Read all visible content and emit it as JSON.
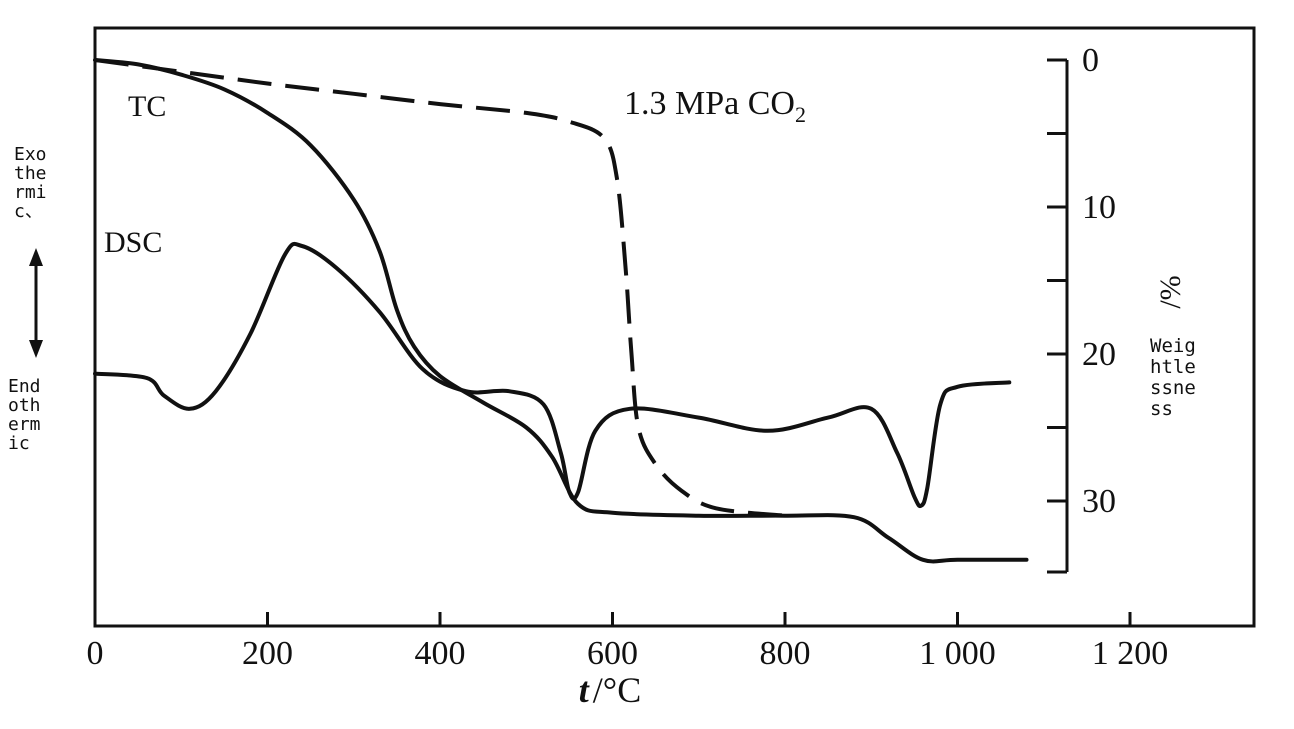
{
  "chart_data": {
    "type": "line",
    "x_axis": {
      "label_var": "t",
      "label_unit": "/°C",
      "range": [
        0,
        1350
      ],
      "ticks": [
        0,
        200,
        400,
        600,
        800,
        1000,
        1200
      ],
      "tick_labels": [
        "0",
        "200",
        "400",
        "600",
        "800",
        "1 000",
        "1 200"
      ]
    },
    "y_right_axis": {
      "label": "Weightlessness",
      "label_text": "Weightlessness",
      "unit": "/%",
      "range": [
        0,
        35
      ],
      "inverted": true,
      "major_ticks": [
        0,
        10,
        20,
        30
      ],
      "tick_labels": [
        "0",
        "10",
        "20",
        "30"
      ],
      "minor_ticks": [
        5,
        15,
        25
      ]
    },
    "y_left_axis": {
      "top_label_text": "Exothermic、",
      "bottom_label_text": "Endothermic",
      "arrow": "double-headed vertical"
    },
    "annotations": {
      "condition": "1.3 MPa CO",
      "condition_sub": "2",
      "tc_label": "TC",
      "dsc_label": "DSC"
    },
    "series": [
      {
        "name": "TC",
        "axis": "right (weightlessness %)",
        "style": "solid",
        "x": [
          0,
          50,
          100,
          150,
          200,
          250,
          300,
          330,
          350,
          370,
          400,
          450,
          500,
          530,
          560,
          600,
          700,
          800,
          880,
          920,
          960,
          1000,
          1080
        ],
        "y": [
          0,
          0.3,
          1.0,
          2.0,
          3.6,
          5.8,
          9.5,
          13.0,
          17.0,
          19.5,
          21.5,
          23.3,
          25.0,
          27.0,
          30.2,
          30.8,
          31.0,
          31.0,
          31.1,
          32.5,
          34.0,
          34.0,
          34.0
        ]
      },
      {
        "name": "1.3 MPa CO2",
        "axis": "right (weightlessness %)",
        "style": "dashed",
        "x": [
          0,
          100,
          200,
          300,
          400,
          500,
          550,
          590,
          605,
          615,
          622,
          630,
          650,
          680,
          720,
          800
        ],
        "y": [
          0,
          0.8,
          1.6,
          2.3,
          3.0,
          3.6,
          4.2,
          5.3,
          8.0,
          14.0,
          20.0,
          25.0,
          27.5,
          29.3,
          30.5,
          31.0
        ]
      },
      {
        "name": "DSC",
        "axis": "left (heat flow, arbitrary)",
        "style": "solid",
        "x": [
          0,
          60,
          80,
          110,
          140,
          180,
          220,
          240,
          280,
          330,
          380,
          430,
          480,
          520,
          540,
          550,
          560,
          580,
          620,
          700,
          780,
          850,
          900,
          930,
          950,
          958,
          965,
          980,
          1000,
          1060
        ],
        "y": [
          56,
          55,
          51,
          48,
          52,
          65,
          83,
          85,
          80,
          70,
          57,
          52,
          52,
          49,
          38,
          29,
          29,
          43,
          48,
          46,
          43,
          46,
          48,
          38,
          28,
          26,
          30,
          49,
          53,
          54
        ]
      }
    ],
    "grid": false,
    "legend": "none (inline labels)"
  }
}
